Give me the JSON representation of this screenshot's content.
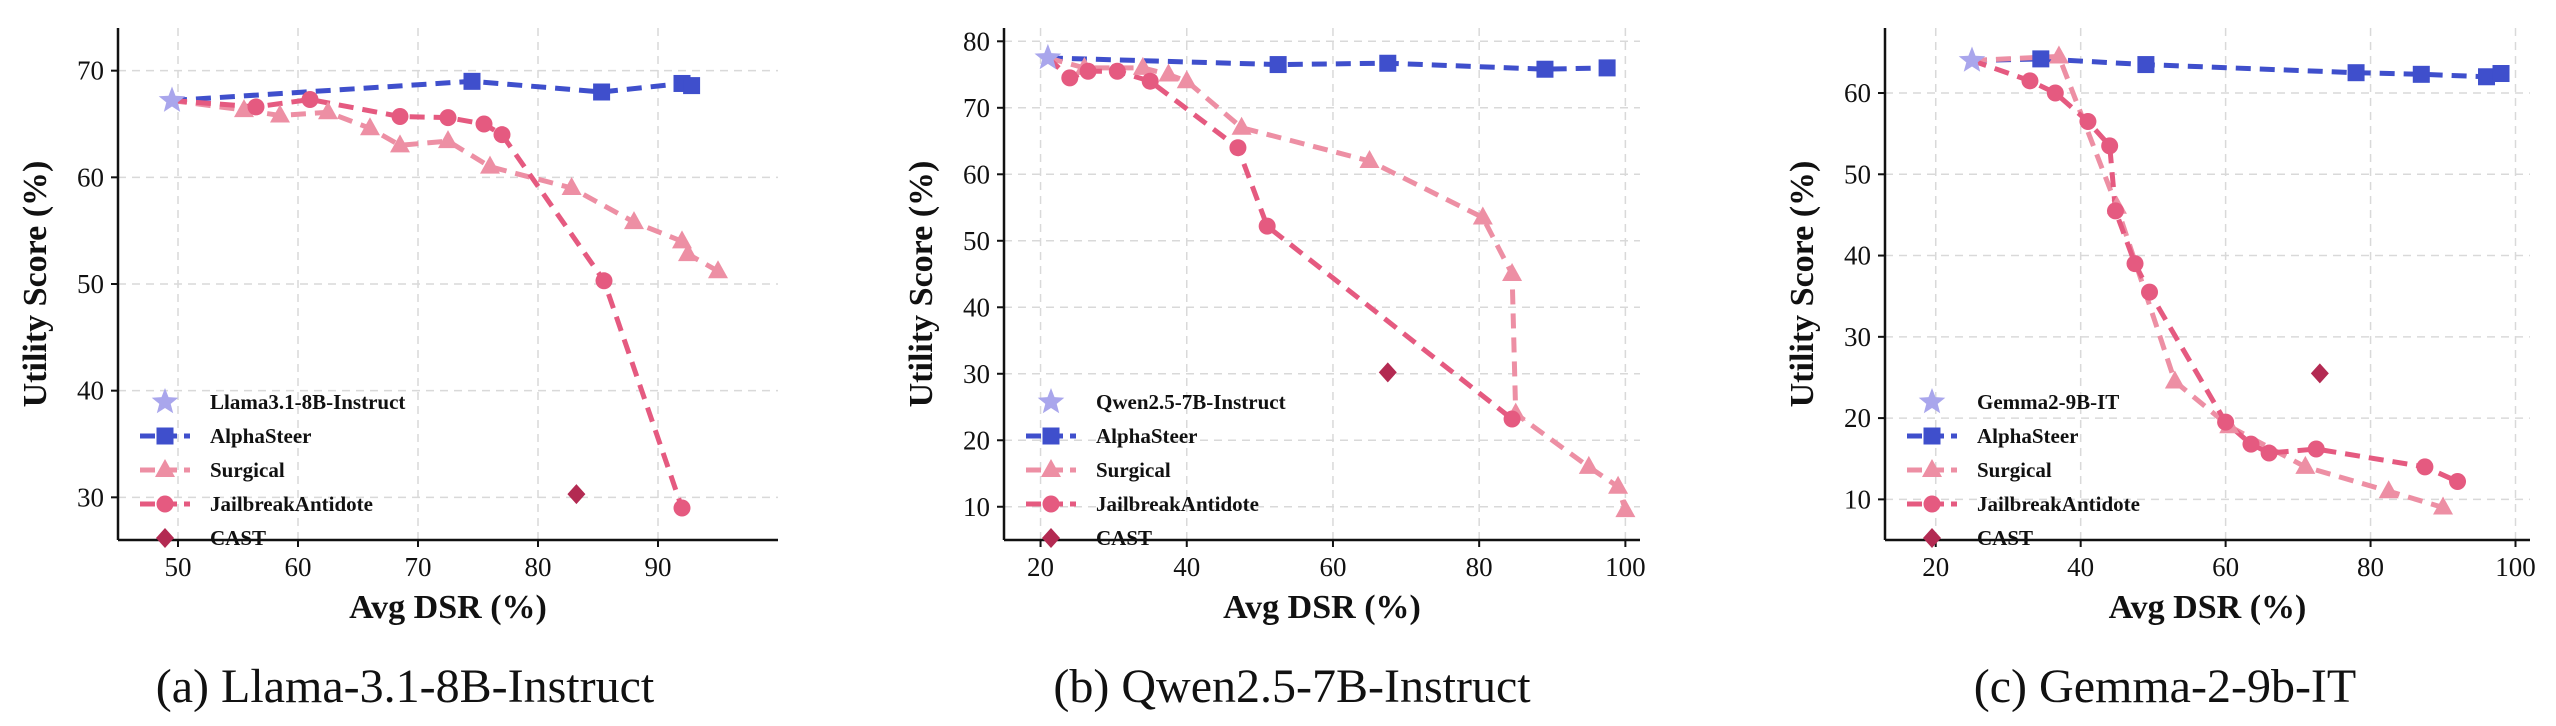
{
  "colors": {
    "alphasteer": "#3f4fcc",
    "surgical": "#ed8fa4",
    "jailbreakantidote": "#e55a80",
    "cast": "#b32a52",
    "base_star": "#a9a6ec",
    "grid": "#d9d9d9"
  },
  "chart_data": [
    {
      "type": "line",
      "caption": "(a) Llama-3.1-8B-Instruct",
      "xlabel": "Avg DSR (%)",
      "ylabel": "Utility Score (%)",
      "xlim": [
        45,
        100
      ],
      "ylim": [
        26,
        74
      ],
      "xticks": [
        50,
        60,
        70,
        80,
        90
      ],
      "yticks": [
        30,
        40,
        50,
        60,
        70
      ],
      "grid": true,
      "legend_position": "lower-left",
      "series": [
        {
          "name": "Llama3.1-8B-Instruct",
          "key": "base_star",
          "marker": "star",
          "line": false,
          "x": [
            49.5
          ],
          "y": [
            67.2
          ]
        },
        {
          "name": "AlphaSteer",
          "key": "alphasteer",
          "marker": "square",
          "line": true,
          "x": [
            49.5,
            74.5,
            85.3,
            92.0,
            92.8
          ],
          "y": [
            67.2,
            69.0,
            68.0,
            68.8,
            68.6
          ]
        },
        {
          "name": "Surgical",
          "key": "surgical",
          "marker": "triangle",
          "line": true,
          "x": [
            49.5,
            55.5,
            58.5,
            62.5,
            66.0,
            68.5,
            72.5,
            76.0,
            82.8,
            88.0,
            92.0,
            92.5,
            95.0
          ],
          "y": [
            67.2,
            66.3,
            65.8,
            66.1,
            64.6,
            63.0,
            63.4,
            61.0,
            59.0,
            55.8,
            54.0,
            52.8,
            51.2
          ]
        },
        {
          "name": "JailbreakAntidote",
          "key": "jailbreakantidote",
          "marker": "circle",
          "line": true,
          "x": [
            49.5,
            56.5,
            61.0,
            68.5,
            72.5,
            75.5,
            77.0,
            85.5,
            92.0
          ],
          "y": [
            67.2,
            66.6,
            67.3,
            65.7,
            65.6,
            65.0,
            64.0,
            50.3,
            29.0
          ]
        },
        {
          "name": "CAST",
          "key": "cast",
          "marker": "diamond",
          "line": false,
          "x": [
            83.2
          ],
          "y": [
            30.3
          ]
        }
      ]
    },
    {
      "type": "line",
      "caption": "(b) Qwen2.5-7B-Instruct",
      "xlabel": "Avg DSR (%)",
      "ylabel": "Utility Score (%)",
      "xlim": [
        15,
        102
      ],
      "ylim": [
        5,
        82
      ],
      "xticks": [
        20,
        40,
        60,
        80,
        100
      ],
      "yticks": [
        10,
        20,
        30,
        40,
        50,
        60,
        70,
        80
      ],
      "grid": true,
      "legend_position": "lower-left",
      "series": [
        {
          "name": "Qwen2.5-7B-Instruct",
          "key": "base_star",
          "marker": "star",
          "line": false,
          "x": [
            21.0
          ],
          "y": [
            77.5
          ]
        },
        {
          "name": "AlphaSteer",
          "key": "alphasteer",
          "marker": "square",
          "line": true,
          "x": [
            21.0,
            52.5,
            67.5,
            89.0,
            97.5
          ],
          "y": [
            77.5,
            76.5,
            76.7,
            75.8,
            76.0
          ]
        },
        {
          "name": "Surgical",
          "key": "surgical",
          "marker": "triangle",
          "line": true,
          "x": [
            21.0,
            26.0,
            34.0,
            37.5,
            40.0,
            47.5,
            65.0,
            80.5,
            84.5,
            85.0,
            95.0,
            99.0,
            100.0
          ],
          "y": [
            77.5,
            76.0,
            76.0,
            75.0,
            74.0,
            67.0,
            62.0,
            53.5,
            45.0,
            24.0,
            16.0,
            13.0,
            9.5
          ]
        },
        {
          "name": "JailbreakAntidote",
          "key": "jailbreakantidote",
          "marker": "circle",
          "line": true,
          "x": [
            21.0,
            24.0,
            26.5,
            30.5,
            35.0,
            47.0,
            51.0,
            84.5
          ],
          "y": [
            77.5,
            74.5,
            75.5,
            75.5,
            74.0,
            64.0,
            52.2,
            23.2
          ]
        },
        {
          "name": "CAST",
          "key": "cast",
          "marker": "diamond",
          "line": false,
          "x": [
            67.5
          ],
          "y": [
            30.2
          ]
        }
      ]
    },
    {
      "type": "line",
      "caption": "(c) Gemma-2-9b-IT",
      "xlabel": "Avg DSR (%)",
      "ylabel": "Utility Score (%)",
      "xlim": [
        13,
        102
      ],
      "ylim": [
        5,
        68
      ],
      "xticks": [
        20,
        40,
        60,
        80,
        100
      ],
      "yticks": [
        10,
        20,
        30,
        40,
        50,
        60
      ],
      "grid": true,
      "legend_position": "lower-left",
      "series": [
        {
          "name": "Gemma2-9B-IT",
          "key": "base_star",
          "marker": "star",
          "line": false,
          "x": [
            25.0
          ],
          "y": [
            64.0
          ]
        },
        {
          "name": "AlphaSteer",
          "key": "alphasteer",
          "marker": "square",
          "line": true,
          "x": [
            25.0,
            34.5,
            49.0,
            78.0,
            87.0,
            96.0,
            98.0
          ],
          "y": [
            64.0,
            64.2,
            63.5,
            62.5,
            62.3,
            62.0,
            62.4
          ]
        },
        {
          "name": "Surgical",
          "key": "surgical",
          "marker": "triangle",
          "line": true,
          "x": [
            25.0,
            37.0,
            45.0,
            53.0,
            60.5,
            71.0,
            82.5,
            90.0
          ],
          "y": [
            64.0,
            64.5,
            46.0,
            24.5,
            19.0,
            14.0,
            11.0,
            9.0
          ]
        },
        {
          "name": "JailbreakAntidote",
          "key": "jailbreakantidote",
          "marker": "circle",
          "line": true,
          "x": [
            25.0,
            33.0,
            36.5,
            41.0,
            44.0,
            44.8,
            47.5,
            49.5,
            60.0,
            63.5,
            66.0,
            72.5,
            87.5,
            92.0
          ],
          "y": [
            64.0,
            61.5,
            60.0,
            56.5,
            53.5,
            45.5,
            39.0,
            35.5,
            19.5,
            16.8,
            15.7,
            16.2,
            14.0,
            12.2
          ]
        },
        {
          "name": "CAST",
          "key": "cast",
          "marker": "diamond",
          "line": false,
          "x": [
            73.0
          ],
          "y": [
            25.5
          ]
        }
      ]
    }
  ]
}
